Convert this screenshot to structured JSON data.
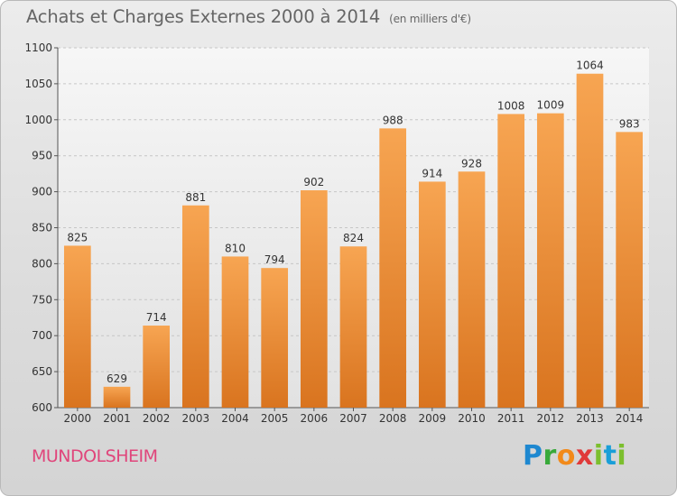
{
  "header": {
    "title": "Achats et Charges Externes 2000 à 2014",
    "unit": "(en milliers d'€)"
  },
  "footer": {
    "commune": "MUNDOLSHEIM",
    "brand": [
      "P",
      "r",
      "o",
      "x",
      "i",
      "t",
      "i"
    ]
  },
  "colors": {
    "bar_top": "#f7a552",
    "bar_bottom": "#d9741f",
    "commune": "#e0457b"
  },
  "chart_data": {
    "type": "bar",
    "title": "Achats et Charges Externes 2000 à 2014",
    "subtitle": "(en milliers d'€)",
    "xlabel": "",
    "ylabel": "",
    "categories": [
      "2000",
      "2001",
      "2002",
      "2003",
      "2004",
      "2005",
      "2006",
      "2007",
      "2008",
      "2009",
      "2010",
      "2011",
      "2012",
      "2013",
      "2014"
    ],
    "values": [
      825,
      629,
      714,
      881,
      810,
      794,
      902,
      824,
      988,
      914,
      928,
      1008,
      1009,
      1064,
      983
    ],
    "ylim": [
      600,
      1100
    ],
    "yticks": [
      600,
      650,
      700,
      750,
      800,
      850,
      900,
      950,
      1000,
      1050,
      1100
    ],
    "grid": true
  }
}
